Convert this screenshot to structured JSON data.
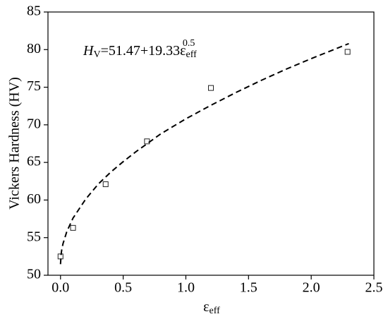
{
  "chart_data": {
    "type": "scatter",
    "x_label": [
      "ε",
      "eff"
    ],
    "y_label": "Vickers Hardness (HV)",
    "annotation": [
      "H",
      "V",
      "=51.47+19.33ε",
      "eff",
      "0.5"
    ],
    "xlim": [
      -0.1,
      2.5
    ],
    "xticks": [
      {
        "value": 0,
        "label": "0.0"
      },
      0.5,
      {
        "value": 1,
        "label": "1.0"
      },
      1.5,
      {
        "value": 2,
        "label": "2.0"
      },
      2.5
    ],
    "ylim": [
      50,
      85
    ],
    "yticks": [
      50,
      55,
      60,
      65,
      70,
      75,
      80,
      85
    ],
    "series": [
      {
        "kind": "markers",
        "color": "#222222",
        "x": [
          0,
          0.1,
          0.36,
          0.69,
          1.2,
          2.29
        ],
        "values": [
          52.5,
          56.3,
          62.1,
          67.8,
          74.9,
          79.7
        ]
      },
      {
        "kind": "dashed-line",
        "color": "#000000",
        "x": [
          0,
          0.005,
          0.01,
          0.02,
          0.05,
          0.1,
          0.2,
          0.3,
          0.4,
          0.5,
          0.6,
          0.8,
          1.0,
          1.2,
          1.4,
          1.6,
          1.8,
          2.0,
          2.3
        ],
        "values": [
          51.47,
          52.8,
          53.4,
          54.2,
          55.8,
          57.6,
          60.1,
          62.1,
          63.7,
          65.1,
          66.4,
          68.8,
          70.8,
          72.6,
          74.3,
          75.9,
          77.4,
          78.8,
          80.8
        ]
      }
    ]
  }
}
